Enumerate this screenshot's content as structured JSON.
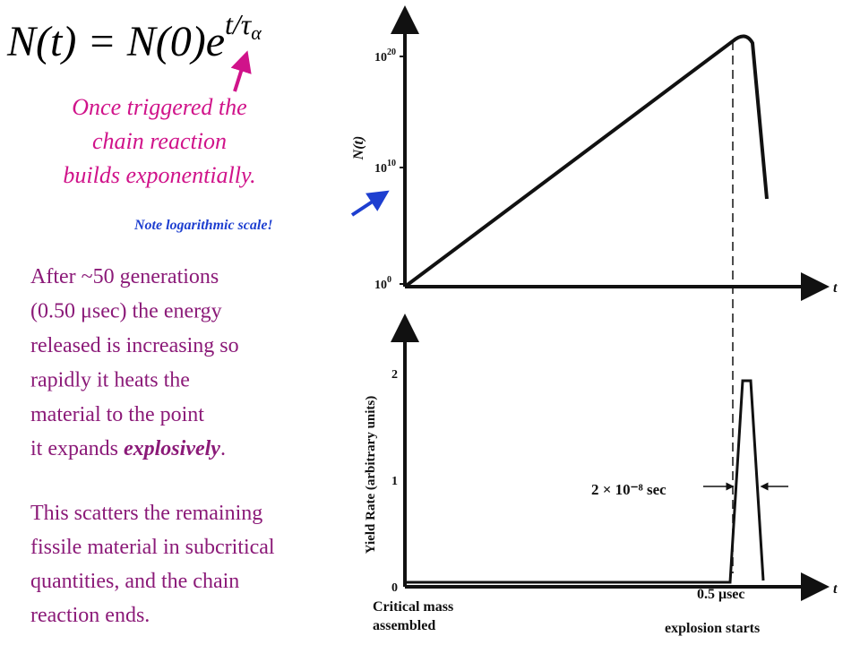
{
  "formula": {
    "base": "N(t) = N(0)e",
    "exponent": "t/τ",
    "subscript": "α"
  },
  "note_exponential": [
    "Once triggered the",
    "chain reaction",
    "builds exponentially."
  ],
  "note_log": "Note logarithmic scale!",
  "paragraph_1": {
    "lines": [
      "After ~50 generations",
      "(0.50 μsec) the energy",
      "released is increasing so",
      "rapidly it heats the",
      "material to the point"
    ],
    "last_start": "it expands ",
    "last_emphasis": "explosively",
    "last_end": "."
  },
  "paragraph_2": [
    "This scatters the remaining",
    "fissile material in subcritical",
    "quantities, and the chain",
    "reaction ends."
  ],
  "top_plot": {
    "y_label": "N(t)",
    "x_label": "t",
    "ticks": [
      {
        "base": "10",
        "exp": "20"
      },
      {
        "base": "10",
        "exp": "10"
      },
      {
        "base": "10",
        "exp": "0"
      }
    ]
  },
  "bottom_plot": {
    "y_label": "Yield Rate (arbitrary units)",
    "x_label": "t",
    "ticks": [
      "2",
      "1",
      "0"
    ],
    "width_note": "2 × 10⁻⁸ sec",
    "x_mark": "0.5 μsec",
    "left_caption": [
      "Critical mass",
      "assembled"
    ],
    "right_caption": "explosion starts"
  }
}
